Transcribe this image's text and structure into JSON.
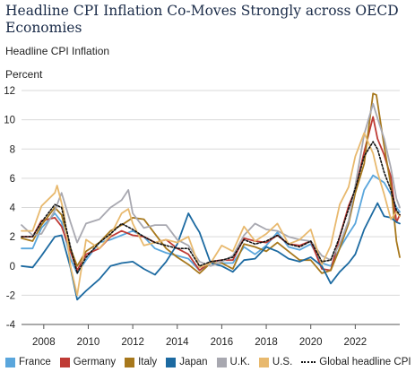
{
  "title": "Headline CPI Inflation Co-Moves Strongly across OECD Economies",
  "subtitle": "Headline CPI Inflation",
  "chart_data": {
    "type": "line",
    "ylabel": "Percent",
    "xlabel": "",
    "xlim": [
      2007.0,
      2024.0
    ],
    "ylim": [
      -4,
      12
    ],
    "yticks": [
      "-4",
      "-2",
      "0",
      "2",
      "4",
      "6",
      "8",
      "10",
      "12"
    ],
    "xticks": [
      "2008",
      "2010",
      "2012",
      "2014",
      "2016",
      "2018",
      "2020",
      "2022"
    ],
    "grid": true,
    "legend_position": "bottom",
    "series": [
      {
        "name": "France",
        "color": "#5aa6dc",
        "dashed": false,
        "points": [
          [
            2007.0,
            1.2
          ],
          [
            2007.5,
            1.2
          ],
          [
            2007.9,
            2.6
          ],
          [
            2008.5,
            3.6
          ],
          [
            2008.8,
            3.0
          ],
          [
            2009.2,
            0.5
          ],
          [
            2009.5,
            -0.5
          ],
          [
            2009.9,
            0.4
          ],
          [
            2010.5,
            1.6
          ],
          [
            2011.0,
            1.8
          ],
          [
            2011.5,
            2.1
          ],
          [
            2012.0,
            2.4
          ],
          [
            2012.5,
            2.0
          ],
          [
            2013.0,
            1.2
          ],
          [
            2013.5,
            0.9
          ],
          [
            2014.0,
            0.7
          ],
          [
            2014.5,
            0.5
          ],
          [
            2015.0,
            -0.3
          ],
          [
            2015.5,
            0.2
          ],
          [
            2016.0,
            0.2
          ],
          [
            2016.5,
            0.2
          ],
          [
            2017.0,
            1.3
          ],
          [
            2017.5,
            0.8
          ],
          [
            2018.0,
            1.4
          ],
          [
            2018.5,
            2.3
          ],
          [
            2019.0,
            1.3
          ],
          [
            2019.5,
            1.1
          ],
          [
            2020.0,
            1.5
          ],
          [
            2020.5,
            0.2
          ],
          [
            2020.9,
            0.0
          ],
          [
            2021.3,
            1.2
          ],
          [
            2021.7,
            2.2
          ],
          [
            2022.0,
            2.9
          ],
          [
            2022.4,
            5.2
          ],
          [
            2022.8,
            6.2
          ],
          [
            2023.0,
            6.0
          ],
          [
            2023.3,
            5.7
          ],
          [
            2023.6,
            4.9
          ],
          [
            2023.85,
            4.0
          ],
          [
            2024.0,
            3.7
          ]
        ]
      },
      {
        "name": "Germany",
        "color": "#bf3b35",
        "dashed": false,
        "points": [
          [
            2007.0,
            2.0
          ],
          [
            2007.5,
            2.0
          ],
          [
            2007.9,
            3.1
          ],
          [
            2008.5,
            3.3
          ],
          [
            2008.8,
            2.7
          ],
          [
            2009.2,
            1.0
          ],
          [
            2009.5,
            -0.3
          ],
          [
            2009.9,
            0.8
          ],
          [
            2010.5,
            1.2
          ],
          [
            2011.0,
            2.0
          ],
          [
            2011.5,
            2.4
          ],
          [
            2012.0,
            2.1
          ],
          [
            2012.5,
            2.0
          ],
          [
            2013.0,
            1.6
          ],
          [
            2013.5,
            1.8
          ],
          [
            2014.0,
            1.2
          ],
          [
            2014.5,
            0.8
          ],
          [
            2015.0,
            -0.3
          ],
          [
            2015.5,
            0.3
          ],
          [
            2016.0,
            0.4
          ],
          [
            2016.5,
            0.4
          ],
          [
            2017.0,
            1.9
          ],
          [
            2017.5,
            1.7
          ],
          [
            2018.0,
            1.6
          ],
          [
            2018.5,
            2.1
          ],
          [
            2019.0,
            1.5
          ],
          [
            2019.5,
            1.4
          ],
          [
            2020.0,
            1.7
          ],
          [
            2020.5,
            -0.2
          ],
          [
            2020.9,
            -0.3
          ],
          [
            2021.3,
            2.0
          ],
          [
            2021.7,
            4.1
          ],
          [
            2022.0,
            5.2
          ],
          [
            2022.4,
            7.8
          ],
          [
            2022.8,
            10.2
          ],
          [
            2023.0,
            8.7
          ],
          [
            2023.3,
            7.6
          ],
          [
            2023.6,
            6.1
          ],
          [
            2023.85,
            3.0
          ],
          [
            2024.0,
            3.5
          ]
        ]
      },
      {
        "name": "Italy",
        "color": "#a7781c",
        "dashed": false,
        "points": [
          [
            2007.0,
            1.9
          ],
          [
            2007.5,
            1.7
          ],
          [
            2007.9,
            2.8
          ],
          [
            2008.5,
            4.0
          ],
          [
            2008.8,
            3.5
          ],
          [
            2009.2,
            1.2
          ],
          [
            2009.5,
            0.0
          ],
          [
            2009.9,
            1.0
          ],
          [
            2010.5,
            1.6
          ],
          [
            2011.0,
            2.4
          ],
          [
            2011.5,
            2.8
          ],
          [
            2012.0,
            3.3
          ],
          [
            2012.5,
            3.2
          ],
          [
            2013.0,
            2.2
          ],
          [
            2013.5,
            1.2
          ],
          [
            2014.0,
            0.6
          ],
          [
            2014.5,
            0.1
          ],
          [
            2015.0,
            -0.5
          ],
          [
            2015.5,
            0.2
          ],
          [
            2016.0,
            0.2
          ],
          [
            2016.5,
            -0.2
          ],
          [
            2017.0,
            1.5
          ],
          [
            2017.5,
            1.3
          ],
          [
            2018.0,
            1.0
          ],
          [
            2018.5,
            1.6
          ],
          [
            2019.0,
            1.0
          ],
          [
            2019.5,
            0.4
          ],
          [
            2020.0,
            0.4
          ],
          [
            2020.5,
            -0.5
          ],
          [
            2020.9,
            -0.3
          ],
          [
            2021.3,
            1.2
          ],
          [
            2021.7,
            2.9
          ],
          [
            2022.0,
            5.0
          ],
          [
            2022.4,
            7.0
          ],
          [
            2022.8,
            11.8
          ],
          [
            2022.95,
            11.7
          ],
          [
            2023.3,
            8.2
          ],
          [
            2023.6,
            5.5
          ],
          [
            2023.85,
            1.7
          ],
          [
            2024.0,
            0.6
          ]
        ]
      },
      {
        "name": "Japan",
        "color": "#1c6aa1",
        "dashed": false,
        "points": [
          [
            2007.0,
            0.0
          ],
          [
            2007.5,
            -0.1
          ],
          [
            2007.9,
            0.7
          ],
          [
            2008.5,
            2.0
          ],
          [
            2008.8,
            2.1
          ],
          [
            2009.2,
            -0.1
          ],
          [
            2009.5,
            -2.3
          ],
          [
            2009.9,
            -1.7
          ],
          [
            2010.5,
            -0.9
          ],
          [
            2011.0,
            0.0
          ],
          [
            2011.5,
            0.2
          ],
          [
            2012.0,
            0.3
          ],
          [
            2012.5,
            -0.2
          ],
          [
            2013.0,
            -0.6
          ],
          [
            2013.5,
            0.3
          ],
          [
            2014.0,
            1.5
          ],
          [
            2014.5,
            3.6
          ],
          [
            2014.8,
            2.8
          ],
          [
            2015.0,
            2.3
          ],
          [
            2015.5,
            0.2
          ],
          [
            2016.0,
            0.0
          ],
          [
            2016.5,
            -0.4
          ],
          [
            2017.0,
            0.4
          ],
          [
            2017.5,
            0.5
          ],
          [
            2018.0,
            1.3
          ],
          [
            2018.5,
            1.0
          ],
          [
            2019.0,
            0.5
          ],
          [
            2019.5,
            0.3
          ],
          [
            2020.0,
            0.6
          ],
          [
            2020.5,
            0.0
          ],
          [
            2020.9,
            -1.2
          ],
          [
            2021.3,
            -0.4
          ],
          [
            2021.7,
            0.2
          ],
          [
            2022.0,
            0.8
          ],
          [
            2022.4,
            2.5
          ],
          [
            2022.8,
            3.7
          ],
          [
            2023.0,
            4.3
          ],
          [
            2023.3,
            3.4
          ],
          [
            2023.6,
            3.3
          ],
          [
            2023.85,
            3.0
          ],
          [
            2024.0,
            2.9
          ]
        ]
      },
      {
        "name": "U.K.",
        "color": "#a8a8b0",
        "dashed": false,
        "points": [
          [
            2007.0,
            2.8
          ],
          [
            2007.5,
            2.1
          ],
          [
            2007.9,
            2.2
          ],
          [
            2008.5,
            3.8
          ],
          [
            2008.8,
            5.0
          ],
          [
            2009.2,
            3.0
          ],
          [
            2009.5,
            1.6
          ],
          [
            2009.9,
            2.9
          ],
          [
            2010.5,
            3.2
          ],
          [
            2011.0,
            4.0
          ],
          [
            2011.5,
            4.5
          ],
          [
            2011.8,
            5.2
          ],
          [
            2012.0,
            3.6
          ],
          [
            2012.5,
            2.6
          ],
          [
            2013.0,
            2.8
          ],
          [
            2013.5,
            2.8
          ],
          [
            2014.0,
            1.8
          ],
          [
            2014.5,
            1.4
          ],
          [
            2015.0,
            0.3
          ],
          [
            2015.5,
            0.0
          ],
          [
            2016.0,
            0.3
          ],
          [
            2016.5,
            0.7
          ],
          [
            2017.0,
            2.1
          ],
          [
            2017.5,
            2.9
          ],
          [
            2018.0,
            2.5
          ],
          [
            2018.5,
            2.4
          ],
          [
            2019.0,
            2.0
          ],
          [
            2019.5,
            1.8
          ],
          [
            2020.0,
            1.7
          ],
          [
            2020.5,
            0.7
          ],
          [
            2020.9,
            0.4
          ],
          [
            2021.3,
            1.5
          ],
          [
            2021.7,
            3.1
          ],
          [
            2022.0,
            5.5
          ],
          [
            2022.4,
            9.0
          ],
          [
            2022.8,
            11.1
          ],
          [
            2023.0,
            10.1
          ],
          [
            2023.3,
            8.7
          ],
          [
            2023.6,
            6.7
          ],
          [
            2023.85,
            4.6
          ],
          [
            2024.0,
            4.0
          ]
        ]
      },
      {
        "name": "U.S.",
        "color": "#e8b96e",
        "dashed": false,
        "points": [
          [
            2007.0,
            2.4
          ],
          [
            2007.5,
            2.4
          ],
          [
            2007.9,
            4.1
          ],
          [
            2008.5,
            5.0
          ],
          [
            2008.6,
            5.5
          ],
          [
            2008.9,
            3.7
          ],
          [
            2009.2,
            0.0
          ],
          [
            2009.5,
            -2.0
          ],
          [
            2009.9,
            1.8
          ],
          [
            2010.5,
            1.2
          ],
          [
            2011.0,
            2.1
          ],
          [
            2011.5,
            3.6
          ],
          [
            2011.8,
            3.9
          ],
          [
            2012.0,
            2.9
          ],
          [
            2012.5,
            1.4
          ],
          [
            2013.0,
            1.6
          ],
          [
            2013.5,
            1.8
          ],
          [
            2014.0,
            1.6
          ],
          [
            2014.5,
            2.0
          ],
          [
            2015.0,
            -0.1
          ],
          [
            2015.5,
            0.2
          ],
          [
            2016.0,
            1.4
          ],
          [
            2016.5,
            1.0
          ],
          [
            2017.0,
            2.7
          ],
          [
            2017.5,
            1.7
          ],
          [
            2018.0,
            2.2
          ],
          [
            2018.5,
            2.9
          ],
          [
            2019.0,
            1.5
          ],
          [
            2019.5,
            1.8
          ],
          [
            2020.0,
            2.5
          ],
          [
            2020.5,
            0.1
          ],
          [
            2020.9,
            1.4
          ],
          [
            2021.3,
            4.2
          ],
          [
            2021.7,
            5.4
          ],
          [
            2022.0,
            7.5
          ],
          [
            2022.4,
            9.1
          ],
          [
            2022.8,
            7.7
          ],
          [
            2023.0,
            6.4
          ],
          [
            2023.3,
            4.9
          ],
          [
            2023.6,
            3.2
          ],
          [
            2023.85,
            3.7
          ],
          [
            2024.0,
            3.4
          ]
        ]
      },
      {
        "name": "Global headline CPI",
        "color": "#111111",
        "dashed": true,
        "points": [
          [
            2007.0,
            2.0
          ],
          [
            2007.5,
            2.0
          ],
          [
            2007.9,
            3.0
          ],
          [
            2008.5,
            4.2
          ],
          [
            2008.8,
            4.0
          ],
          [
            2009.2,
            1.3
          ],
          [
            2009.5,
            -0.5
          ],
          [
            2009.9,
            0.6
          ],
          [
            2010.5,
            1.6
          ],
          [
            2011.0,
            2.2
          ],
          [
            2011.5,
            2.9
          ],
          [
            2012.0,
            2.5
          ],
          [
            2012.5,
            2.0
          ],
          [
            2013.0,
            1.6
          ],
          [
            2013.5,
            1.4
          ],
          [
            2014.0,
            1.2
          ],
          [
            2014.5,
            1.2
          ],
          [
            2015.0,
            0.0
          ],
          [
            2015.5,
            0.3
          ],
          [
            2016.0,
            0.4
          ],
          [
            2016.5,
            0.6
          ],
          [
            2017.0,
            1.8
          ],
          [
            2017.5,
            1.5
          ],
          [
            2018.0,
            1.7
          ],
          [
            2018.5,
            2.1
          ],
          [
            2019.0,
            1.5
          ],
          [
            2019.5,
            1.3
          ],
          [
            2020.0,
            1.7
          ],
          [
            2020.5,
            0.3
          ],
          [
            2020.9,
            0.4
          ],
          [
            2021.3,
            2.0
          ],
          [
            2021.7,
            3.9
          ],
          [
            2022.0,
            5.3
          ],
          [
            2022.4,
            7.5
          ],
          [
            2022.8,
            8.5
          ],
          [
            2023.0,
            8.0
          ],
          [
            2023.3,
            6.4
          ],
          [
            2023.6,
            5.2
          ],
          [
            2023.85,
            3.8
          ],
          [
            2024.0,
            3.5
          ]
        ]
      }
    ]
  }
}
